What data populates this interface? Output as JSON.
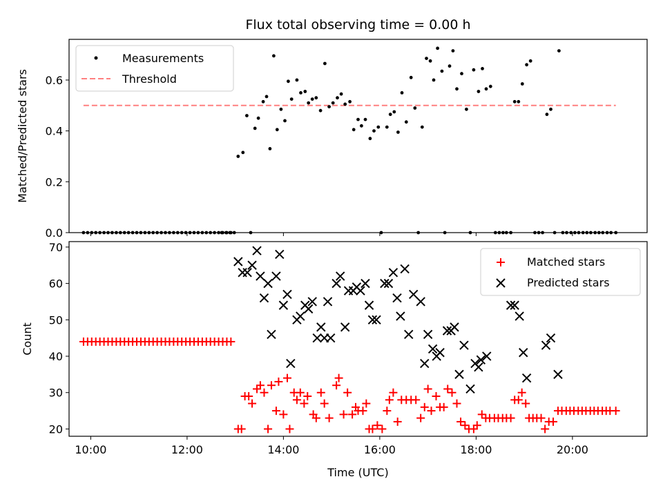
{
  "chart_data": [
    {
      "type": "scatter",
      "title": "Flux total observing time = 0.00 h",
      "ylabel": "Matched/Predicted stars",
      "xlabel": "",
      "xlim": [
        "09:33",
        "21:33"
      ],
      "ylim": [
        0,
        0.76
      ],
      "yticks": [
        0.0,
        0.2,
        0.4,
        0.6
      ],
      "ytick_labels": [
        "0.0",
        "0.2",
        "0.4",
        "0.6"
      ],
      "legend": "top-left",
      "threshold": 0.5,
      "series": [
        {
          "name": "Measurements",
          "marker": "dot",
          "color": "#000000",
          "points": [
            [
              12.72,
              0.0
            ],
            [
              12.81,
              0.0
            ],
            [
              12.89,
              0.0
            ],
            [
              12.98,
              0.0
            ],
            [
              13.06,
              0.3
            ],
            [
              13.16,
              0.315
            ],
            [
              13.24,
              0.46
            ],
            [
              13.32,
              0.0
            ],
            [
              13.41,
              0.41
            ],
            [
              13.48,
              0.45
            ],
            [
              13.58,
              0.515
            ],
            [
              13.65,
              0.535
            ],
            [
              13.72,
              0.33
            ],
            [
              13.8,
              0.695
            ],
            [
              13.87,
              0.405
            ],
            [
              13.95,
              0.485
            ],
            [
              14.03,
              0.44
            ],
            [
              14.1,
              0.595
            ],
            [
              14.17,
              0.525
            ],
            [
              14.28,
              0.6
            ],
            [
              14.36,
              0.55
            ],
            [
              14.45,
              0.555
            ],
            [
              14.52,
              0.51
            ],
            [
              14.6,
              0.525
            ],
            [
              14.68,
              0.53
            ],
            [
              14.77,
              0.48
            ],
            [
              14.86,
              0.665
            ],
            [
              14.95,
              0.495
            ],
            [
              15.03,
              0.51
            ],
            [
              15.12,
              0.53
            ],
            [
              15.2,
              0.545
            ],
            [
              15.28,
              0.505
            ],
            [
              15.38,
              0.515
            ],
            [
              15.46,
              0.405
            ],
            [
              15.55,
              0.445
            ],
            [
              15.62,
              0.42
            ],
            [
              15.7,
              0.445
            ],
            [
              15.8,
              0.37
            ],
            [
              15.88,
              0.4
            ],
            [
              15.97,
              0.415
            ],
            [
              16.03,
              0.0
            ],
            [
              16.15,
              0.415
            ],
            [
              16.22,
              0.465
            ],
            [
              16.3,
              0.475
            ],
            [
              16.38,
              0.395
            ],
            [
              16.46,
              0.55
            ],
            [
              16.55,
              0.435
            ],
            [
              16.65,
              0.61
            ],
            [
              16.73,
              0.49
            ],
            [
              16.8,
              0.0
            ],
            [
              16.88,
              0.415
            ],
            [
              16.97,
              0.685
            ],
            [
              17.05,
              0.675
            ],
            [
              17.12,
              0.6
            ],
            [
              17.2,
              0.725
            ],
            [
              17.29,
              0.635
            ],
            [
              17.35,
              0.0
            ],
            [
              17.45,
              0.655
            ],
            [
              17.52,
              0.715
            ],
            [
              17.6,
              0.565
            ],
            [
              17.7,
              0.625
            ],
            [
              17.8,
              0.485
            ],
            [
              17.88,
              0.0
            ],
            [
              17.95,
              0.64
            ],
            [
              18.05,
              0.555
            ],
            [
              18.13,
              0.645
            ],
            [
              18.21,
              0.565
            ],
            [
              18.3,
              0.575
            ],
            [
              18.4,
              0.0
            ],
            [
              18.48,
              0.0
            ],
            [
              18.56,
              0.0
            ],
            [
              18.63,
              0.0
            ],
            [
              18.72,
              0.0
            ],
            [
              18.8,
              0.515
            ],
            [
              18.88,
              0.515
            ],
            [
              18.96,
              0.585
            ],
            [
              19.05,
              0.66
            ],
            [
              19.13,
              0.675
            ],
            [
              19.22,
              0.0
            ],
            [
              19.3,
              0.0
            ],
            [
              19.38,
              0.0
            ],
            [
              19.47,
              0.465
            ],
            [
              19.55,
              0.485
            ],
            [
              19.63,
              0.0
            ],
            [
              19.72,
              0.715
            ],
            [
              19.8,
              0.0
            ],
            [
              19.88,
              0.0
            ],
            [
              19.97,
              0.0
            ],
            [
              20.05,
              0.0
            ],
            [
              20.13,
              0.0
            ],
            [
              20.22,
              0.0
            ],
            [
              20.3,
              0.0
            ],
            [
              20.38,
              0.0
            ],
            [
              20.47,
              0.0
            ],
            [
              20.55,
              0.0
            ],
            [
              20.63,
              0.0
            ],
            [
              20.72,
              0.0
            ],
            [
              20.8,
              0.0
            ],
            [
              20.9,
              0.0
            ]
          ],
          "zero_run": {
            "start": 9.85,
            "end": 12.98,
            "step": 0.085,
            "value": 0.0
          }
        },
        {
          "name": "Threshold",
          "style": "dashed",
          "color": "#ff7f7f",
          "x_range": [
            9.85,
            20.9
          ],
          "y": 0.5
        }
      ]
    },
    {
      "type": "scatter",
      "title": "",
      "ylabel": "Count",
      "xlabel": "Time (UTC)",
      "xlim": [
        "09:33",
        "21:33"
      ],
      "ylim": [
        18,
        71.5
      ],
      "yticks": [
        20,
        30,
        40,
        50,
        60,
        70
      ],
      "ytick_labels": [
        "20",
        "30",
        "40",
        "50",
        "60",
        "70"
      ],
      "xticks": [
        10,
        12,
        14,
        16,
        18,
        20
      ],
      "xtick_labels": [
        "10:00",
        "12:00",
        "14:00",
        "16:00",
        "18:00",
        "20:00"
      ],
      "legend": "top-right",
      "series": [
        {
          "name": "Matched stars",
          "marker": "plus",
          "color": "#ff0000",
          "points": [
            [
              13.06,
              20
            ],
            [
              13.13,
              20
            ],
            [
              13.2,
              29
            ],
            [
              13.28,
              29
            ],
            [
              13.35,
              27
            ],
            [
              13.45,
              31
            ],
            [
              13.52,
              32
            ],
            [
              13.6,
              30
            ],
            [
              13.68,
              20
            ],
            [
              13.75,
              32
            ],
            [
              13.85,
              25
            ],
            [
              13.9,
              33
            ],
            [
              14.0,
              24
            ],
            [
              14.08,
              34
            ],
            [
              14.13,
              20
            ],
            [
              14.22,
              30
            ],
            [
              14.28,
              28
            ],
            [
              14.35,
              30
            ],
            [
              14.43,
              27
            ],
            [
              14.5,
              29
            ],
            [
              14.62,
              24
            ],
            [
              14.68,
              23
            ],
            [
              14.78,
              30
            ],
            [
              14.85,
              27
            ],
            [
              14.95,
              23
            ],
            [
              15.1,
              32
            ],
            [
              15.15,
              34
            ],
            [
              15.25,
              24
            ],
            [
              15.33,
              30
            ],
            [
              15.43,
              24
            ],
            [
              15.5,
              26
            ],
            [
              15.55,
              25
            ],
            [
              15.65,
              25
            ],
            [
              15.72,
              27
            ],
            [
              15.78,
              20
            ],
            [
              15.85,
              20
            ],
            [
              15.95,
              21
            ],
            [
              16.05,
              20
            ],
            [
              16.15,
              25
            ],
            [
              16.2,
              28
            ],
            [
              16.28,
              30
            ],
            [
              16.37,
              22
            ],
            [
              16.45,
              28
            ],
            [
              16.55,
              28
            ],
            [
              16.65,
              28
            ],
            [
              16.75,
              28
            ],
            [
              16.85,
              23
            ],
            [
              16.93,
              26
            ],
            [
              17.0,
              31
            ],
            [
              17.07,
              25
            ],
            [
              17.17,
              29
            ],
            [
              17.25,
              26
            ],
            [
              17.33,
              26
            ],
            [
              17.41,
              31
            ],
            [
              17.5,
              30
            ],
            [
              17.6,
              27
            ],
            [
              17.68,
              22
            ],
            [
              17.77,
              21
            ],
            [
              17.85,
              20
            ],
            [
              17.95,
              20
            ],
            [
              18.02,
              21
            ],
            [
              18.12,
              24
            ],
            [
              18.2,
              23
            ],
            [
              18.28,
              23
            ],
            [
              18.38,
              23
            ],
            [
              18.46,
              23
            ],
            [
              18.55,
              23
            ],
            [
              18.63,
              23
            ],
            [
              18.72,
              23
            ],
            [
              18.8,
              28
            ],
            [
              18.88,
              28
            ],
            [
              18.95,
              30
            ],
            [
              19.03,
              27
            ],
            [
              19.1,
              23
            ],
            [
              19.18,
              23
            ],
            [
              19.26,
              23
            ],
            [
              19.35,
              23
            ],
            [
              19.43,
              20
            ],
            [
              19.51,
              22
            ],
            [
              19.6,
              22
            ],
            [
              19.7,
              25
            ],
            [
              19.78,
              25
            ],
            [
              19.87,
              25
            ],
            [
              19.95,
              25
            ],
            [
              20.03,
              25
            ],
            [
              20.12,
              25
            ],
            [
              20.2,
              25
            ],
            [
              20.28,
              25
            ],
            [
              20.37,
              25
            ],
            [
              20.45,
              25
            ],
            [
              20.53,
              25
            ],
            [
              20.62,
              25
            ],
            [
              20.7,
              25
            ],
            [
              20.78,
              25
            ],
            [
              20.9,
              25
            ]
          ],
          "constant_run": {
            "start": 9.85,
            "end": 12.98,
            "step": 0.085,
            "value": 44
          }
        },
        {
          "name": "Predicted stars",
          "marker": "x",
          "color": "#000000",
          "points": [
            [
              13.06,
              66
            ],
            [
              13.15,
              63
            ],
            [
              13.25,
              63
            ],
            [
              13.35,
              65
            ],
            [
              13.45,
              69
            ],
            [
              13.52,
              62
            ],
            [
              13.6,
              56
            ],
            [
              13.68,
              60
            ],
            [
              13.75,
              46
            ],
            [
              13.85,
              62
            ],
            [
              13.92,
              68
            ],
            [
              14.0,
              54
            ],
            [
              14.08,
              57
            ],
            [
              14.15,
              38
            ],
            [
              14.28,
              50
            ],
            [
              14.35,
              51
            ],
            [
              14.45,
              54
            ],
            [
              14.52,
              53
            ],
            [
              14.6,
              55
            ],
            [
              14.7,
              45
            ],
            [
              14.78,
              48
            ],
            [
              14.85,
              45
            ],
            [
              14.92,
              55
            ],
            [
              14.98,
              45
            ],
            [
              15.1,
              60
            ],
            [
              15.18,
              62
            ],
            [
              15.28,
              48
            ],
            [
              15.35,
              58
            ],
            [
              15.45,
              58
            ],
            [
              15.52,
              59
            ],
            [
              15.6,
              58
            ],
            [
              15.7,
              60
            ],
            [
              15.78,
              54
            ],
            [
              15.85,
              50
            ],
            [
              15.93,
              50
            ],
            [
              16.1,
              60
            ],
            [
              16.18,
              60
            ],
            [
              16.28,
              63
            ],
            [
              16.36,
              56
            ],
            [
              16.43,
              51
            ],
            [
              16.52,
              64
            ],
            [
              16.6,
              46
            ],
            [
              16.7,
              57
            ],
            [
              16.85,
              55
            ],
            [
              16.93,
              38
            ],
            [
              17.0,
              46
            ],
            [
              17.1,
              42
            ],
            [
              17.18,
              40
            ],
            [
              17.25,
              41
            ],
            [
              17.4,
              47
            ],
            [
              17.48,
              47
            ],
            [
              17.55,
              48
            ],
            [
              17.65,
              35
            ],
            [
              17.75,
              43
            ],
            [
              17.88,
              31
            ],
            [
              17.98,
              38
            ],
            [
              18.05,
              37
            ],
            [
              18.1,
              39
            ],
            [
              18.22,
              40
            ],
            [
              18.72,
              54
            ],
            [
              18.8,
              54
            ],
            [
              18.9,
              51
            ],
            [
              18.98,
              41
            ],
            [
              19.05,
              34
            ],
            [
              19.45,
              43
            ],
            [
              19.55,
              45
            ],
            [
              19.7,
              35
            ]
          ]
        }
      ]
    }
  ]
}
